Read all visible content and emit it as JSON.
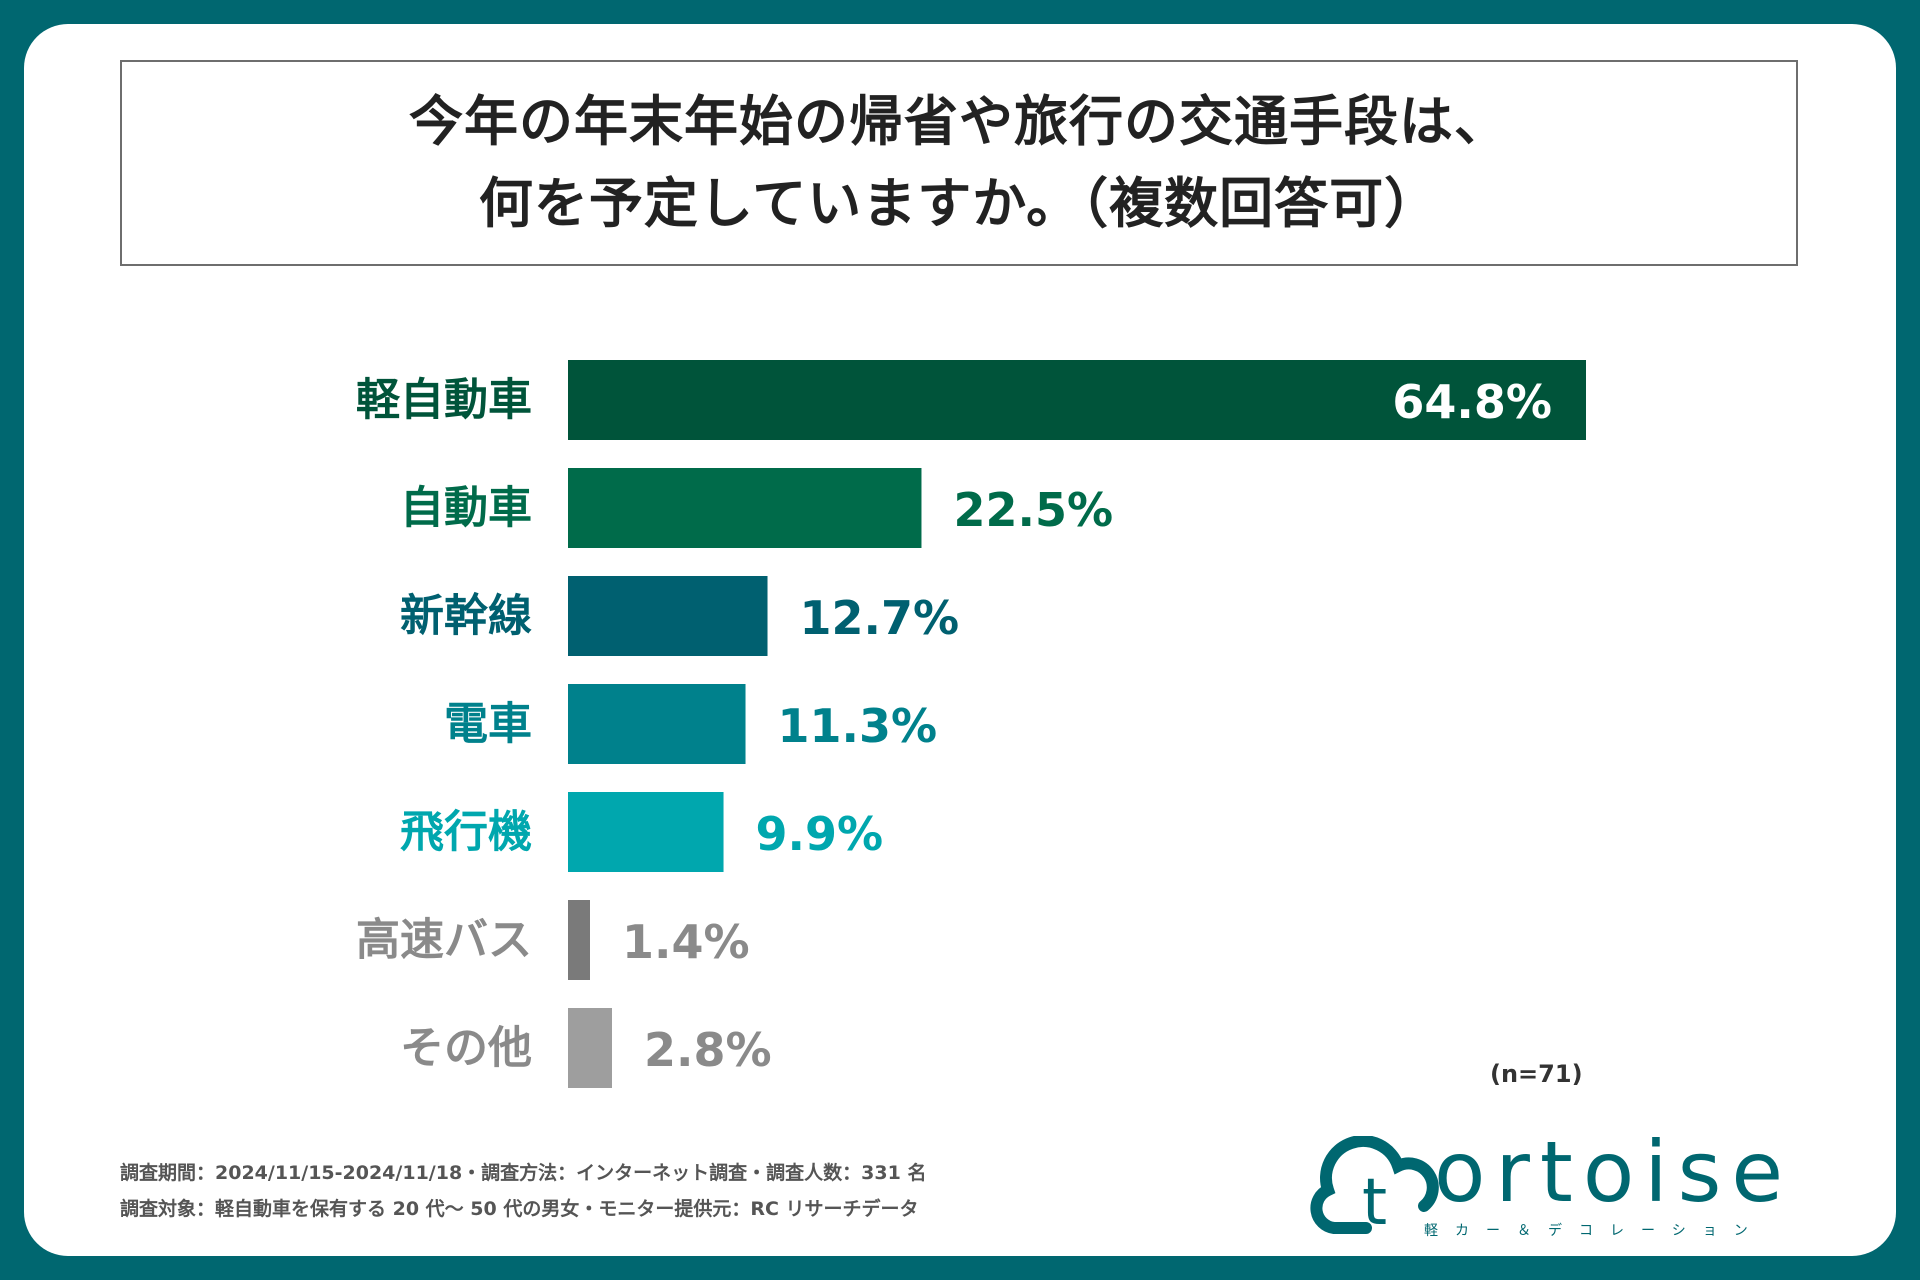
{
  "title": {
    "line1": "今年の年末年始の帰省や旅行の交通手段は、",
    "line2": "何を予定していますか。（複数回答可）"
  },
  "chart_data": {
    "type": "bar",
    "orientation": "horizontal",
    "categories": [
      "軽自動車",
      "自動車",
      "新幹線",
      "電車",
      "飛行機",
      "高速バス",
      "その他"
    ],
    "values": [
      64.8,
      22.5,
      12.7,
      11.3,
      9.9,
      1.4,
      2.8
    ],
    "value_labels": [
      "64.8%",
      "22.5%",
      "12.7%",
      "11.3%",
      "9.9%",
      "1.4%",
      "2.8%"
    ],
    "colors": [
      "#00543a",
      "#006b4a",
      "#006070",
      "#00818c",
      "#00a7ae",
      "#7a7a7a",
      "#9e9e9e"
    ],
    "xlim": [
      0,
      64.8
    ],
    "grid": false,
    "legend": "none"
  },
  "sample_size": "(n=71)",
  "footnotes": [
    "調査期間：2024/11/15-2024/11/18・調査方法：インターネット調査・調査人数：331 名",
    "調査対象：軽自動車を保有する 20 代〜 50 代の男女・モニター提供元：RC リサーチデータ"
  ],
  "logo": {
    "word": "ortoise",
    "initial": "t",
    "sub": "軽カー＆デコレーション",
    "color": "#006770"
  }
}
